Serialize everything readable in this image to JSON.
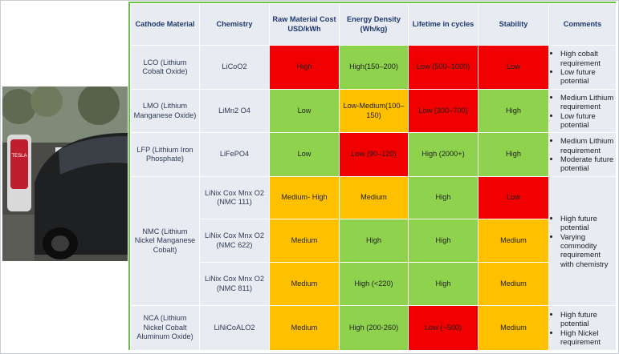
{
  "colors": {
    "high_risk": "#f00000",
    "good": "#8fd24e",
    "medium": "#ffc000",
    "border_accent": "#6abf4b",
    "header_text": "#1f3a6e"
  },
  "photo": {
    "alt": "electric car at charging station",
    "sign": "TESLA"
  },
  "headers": {
    "material": "Cathode Material",
    "chemistry": "Chemistry",
    "cost": "Raw Material Cost USD/kWh",
    "energy": "Energy Density (Wh/kg)",
    "lifetime": "Lifetime in cycles",
    "stability": "Stability",
    "comments": "Comments"
  },
  "rows": {
    "lco": {
      "material": "LCO (Lithium Cobalt Oxide)",
      "chemistry": "LiCoO2",
      "cost": "High",
      "energy": "High(150–200)",
      "lifetime": "Low (500–1000)",
      "stability": "Low",
      "comments": [
        "High cobalt requirement",
        "Low future potential"
      ]
    },
    "lmo": {
      "material": "LMO (Lithium Manganese Oxide)",
      "chemistry": "LiMn2 O4",
      "cost": "Low",
      "energy": "Low-Medium(100–150)",
      "lifetime": "Low (300–700)",
      "stability": "High",
      "comments": [
        "Medium Lithium requirement",
        "Low future potential"
      ]
    },
    "lfp": {
      "material": "LFP (Lithium Iron Phosphate)",
      "chemistry": "LiFePO4",
      "cost": "Low",
      "energy": "Low (90–120)",
      "lifetime": "High (2000+)",
      "stability": "High",
      "comments": [
        "Medium Lithium requirement",
        "Moderate future potential"
      ]
    },
    "nmc": {
      "material": "NMC (Lithium Nickel Manganese Cobalt)",
      "comments": [
        "High future potential",
        "Varying commodity requirement with chemistry"
      ],
      "sub": [
        {
          "chemistry": "LiNix Cox Mnx O2 (NMC 111)",
          "cost": "Medium- High",
          "energy": "Medium",
          "lifetime": "High",
          "stability": "Low"
        },
        {
          "chemistry": "LiNix Cox Mnx O2 (NMC 622)",
          "cost": "Medium",
          "energy": "High",
          "lifetime": "High",
          "stability": "Medium"
        },
        {
          "chemistry": "LiNix Cox Mnx O2 (NMC 811)",
          "cost": "Medium",
          "energy": "High (<220)",
          "lifetime": "High",
          "stability": "Medium"
        }
      ]
    },
    "nca": {
      "material": "NCA (Lithium Nickel Cobalt Aluminum Oxide)",
      "chemistry": "LiNiCoALO2",
      "cost": "Medium",
      "energy": "High (200-260)",
      "lifetime": "Low (~500)",
      "stability": "Medium",
      "comments": [
        "High future potential",
        "High Nickel requirement"
      ]
    }
  }
}
